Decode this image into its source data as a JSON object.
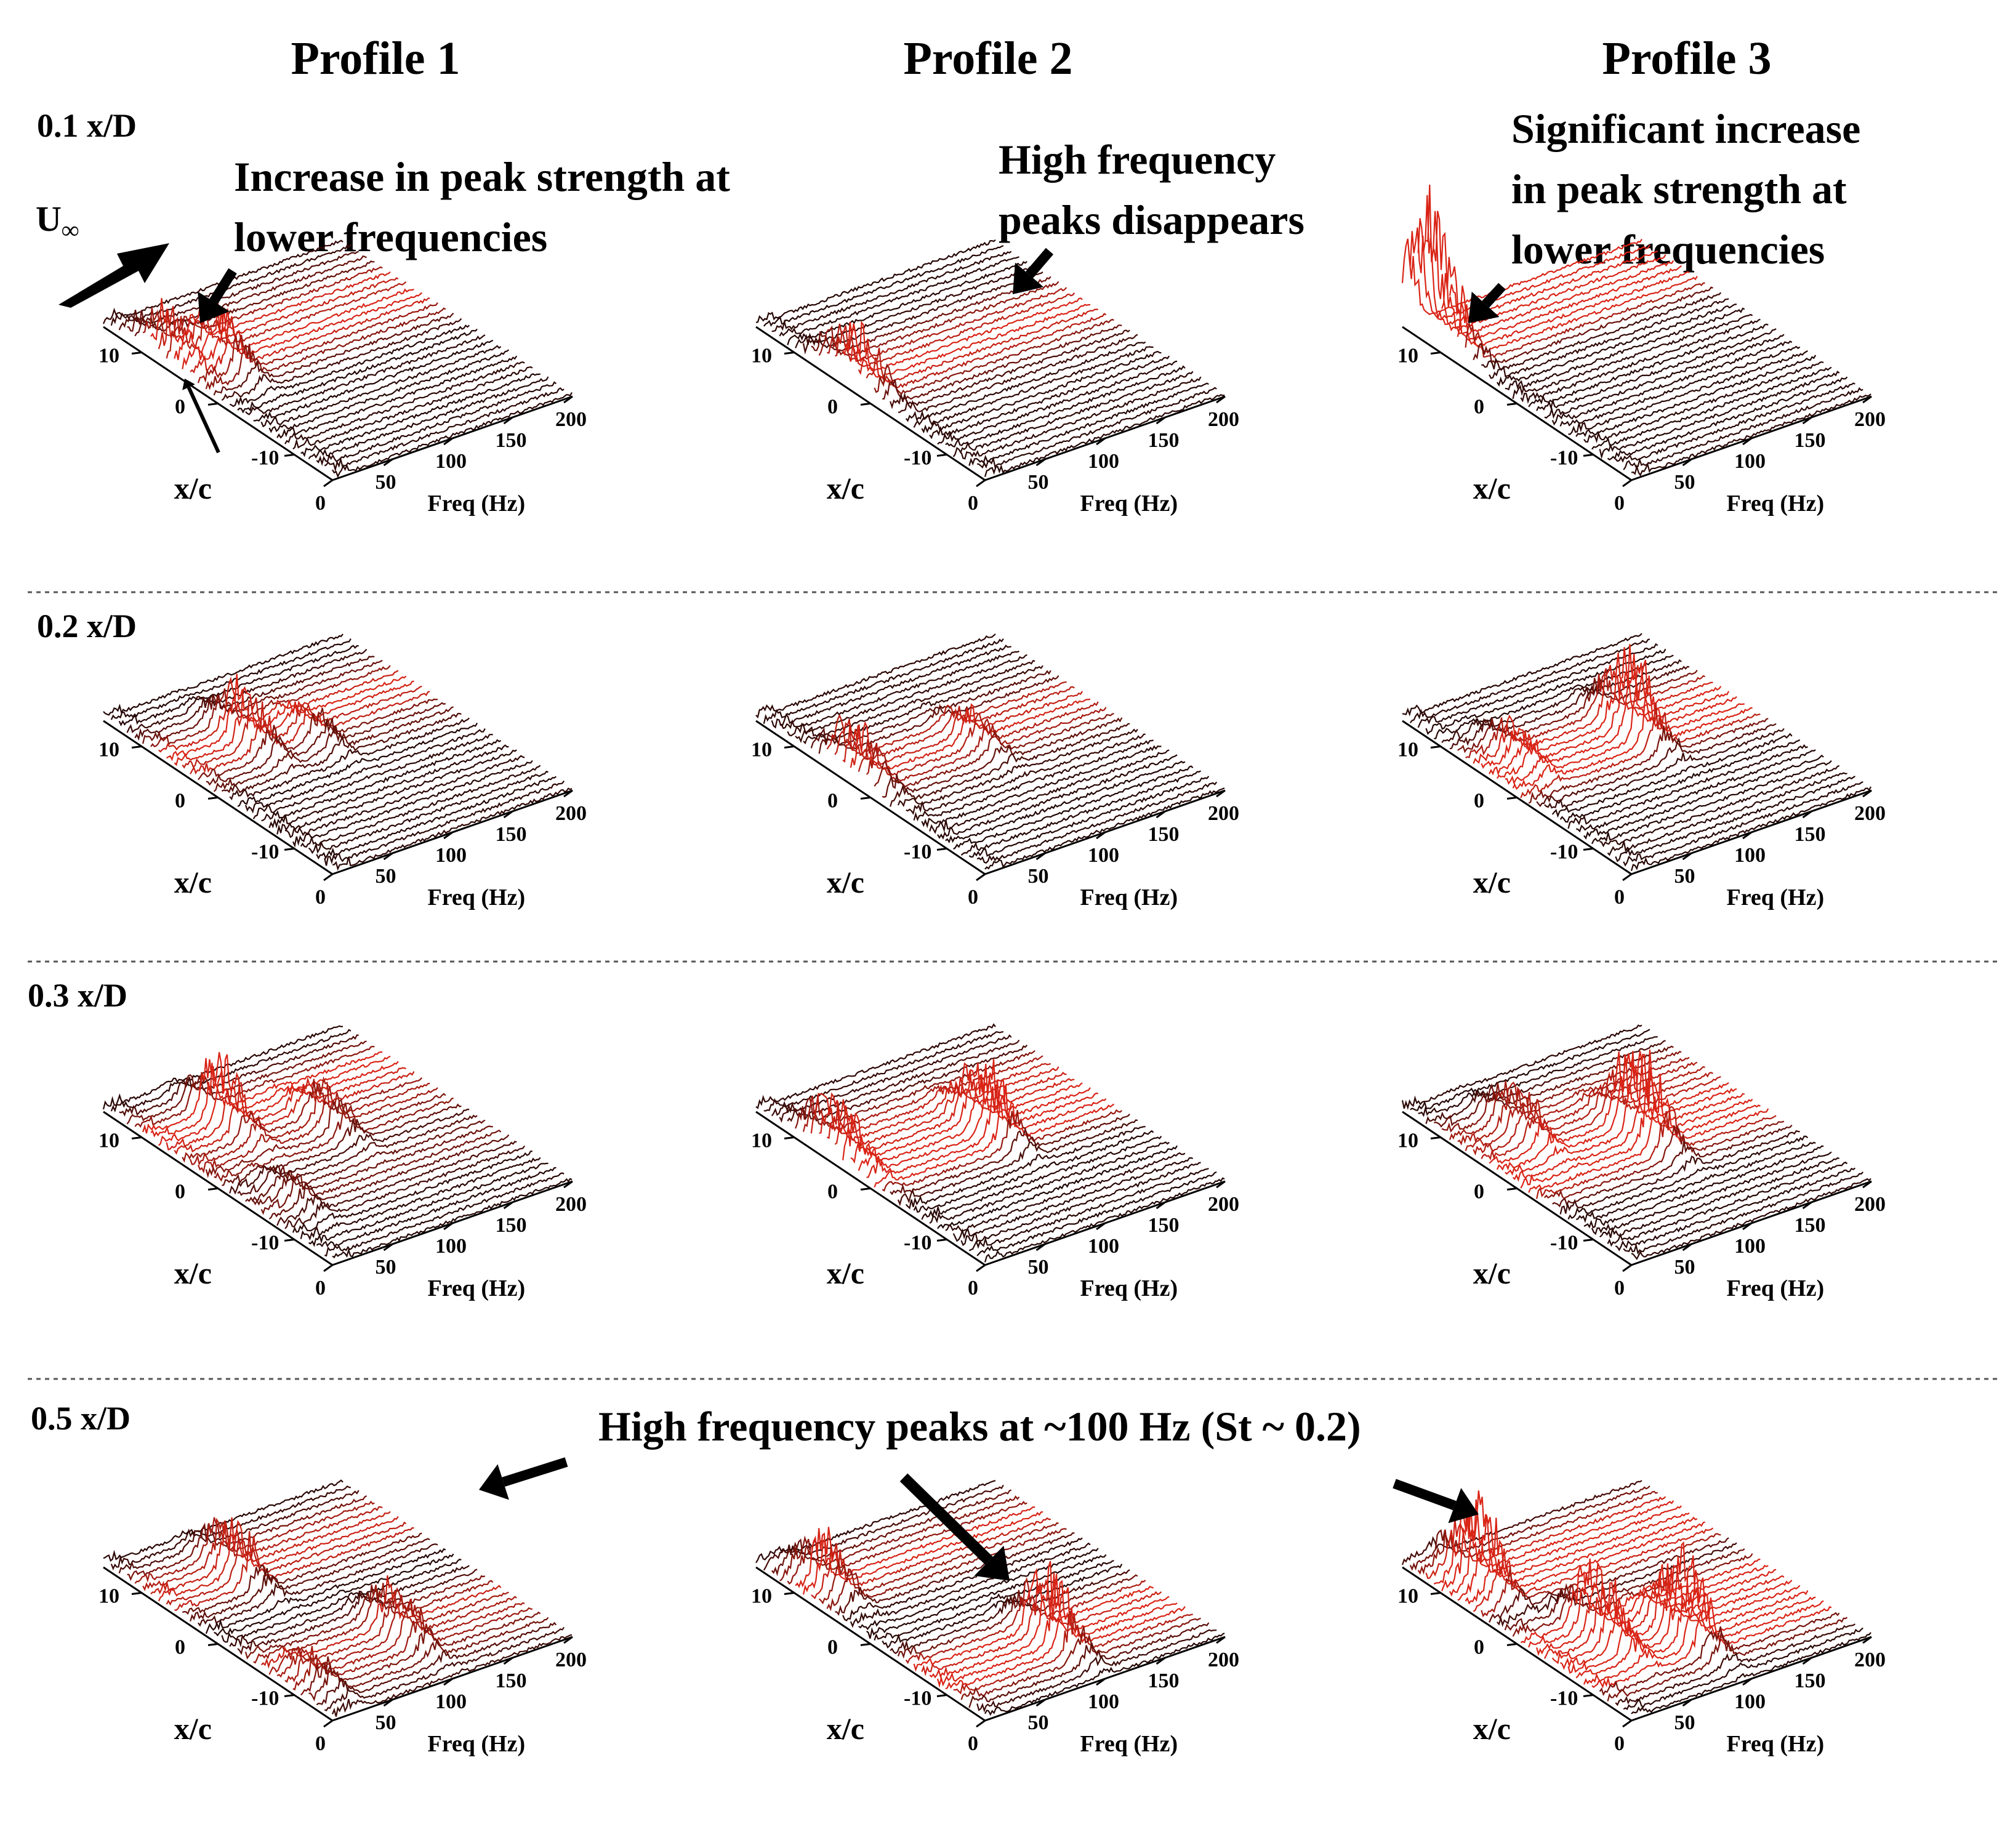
{
  "figure": {
    "columns": [
      "Profile 1",
      "Profile 2",
      "Profile 3"
    ],
    "rows": [
      "0.1 x/D",
      "0.2 x/D",
      "0.3 x/D",
      "0.5 x/D"
    ],
    "freestream_label": "U",
    "freestream_sub": "∞",
    "annotations": {
      "p1_line1": "Increase in peak strength at",
      "p1_line2": "lower frequencies",
      "p2_line1": "High frequency",
      "p2_line2": "peaks disappears",
      "p3_line1": "Significant increase",
      "p3_line2": "in peak strength at",
      "p3_line3": "lower frequencies",
      "bottom": "High frequency peaks at ~100 Hz (St ~ 0.2)"
    },
    "colors": {
      "low": "#000000",
      "high": "#ff2a1a",
      "axis": "#000000",
      "separator": "#555555"
    }
  },
  "chart_data": {
    "type": "waterfall-3d",
    "xlabel": "Freq (Hz)",
    "ylabel": "x/c",
    "freq_ticks": [
      "0",
      "50",
      "100",
      "150",
      "200"
    ],
    "xc_ticks": [
      "10",
      "0",
      "-10"
    ],
    "xlim": [
      0,
      200
    ],
    "ylim": [
      -15,
      15
    ],
    "grid": false,
    "panels": [
      {
        "profile": "Profile 1",
        "station": "0.1 x/D",
        "peaks": [
          {
            "f": 10,
            "xc": 8,
            "a": 0.75
          },
          {
            "f": 35,
            "xc": 5,
            "a": 1.0
          }
        ]
      },
      {
        "profile": "Profile 2",
        "station": "0.1 x/D",
        "peaks": [
          {
            "f": 8,
            "xc": 3,
            "a": 0.9
          }
        ]
      },
      {
        "profile": "Profile 3",
        "station": "0.1 x/D",
        "peaks": [
          {
            "f": 5,
            "xc": 12,
            "a": 2.4
          }
        ]
      },
      {
        "profile": "Profile 1",
        "station": "0.2 x/D",
        "peaks": [
          {
            "f": 60,
            "xc": 6,
            "a": 1.0
          },
          {
            "f": 100,
            "xc": 3,
            "a": 0.55
          }
        ]
      },
      {
        "profile": "Profile 2",
        "station": "0.2 x/D",
        "peaks": [
          {
            "f": 10,
            "xc": 3,
            "a": 0.9
          },
          {
            "f": 100,
            "xc": 2,
            "a": 0.55
          }
        ]
      },
      {
        "profile": "Profile 3",
        "station": "0.2 x/D",
        "peaks": [
          {
            "f": 115,
            "xc": 3,
            "a": 1.5
          },
          {
            "f": 30,
            "xc": 5,
            "a": 0.6
          }
        ]
      },
      {
        "profile": "Profile 1",
        "station": "0.3 x/D",
        "peaks": [
          {
            "f": 55,
            "xc": 8,
            "a": 1.1
          },
          {
            "f": 110,
            "xc": 3,
            "a": 0.7
          },
          {
            "f": 30,
            "xc": -5,
            "a": 0.45
          }
        ]
      },
      {
        "profile": "Profile 2",
        "station": "0.3 x/D",
        "peaks": [
          {
            "f": 10,
            "xc": 6,
            "a": 0.95
          },
          {
            "f": 110,
            "xc": 2,
            "a": 1.2
          }
        ]
      },
      {
        "profile": "Profile 3",
        "station": "0.3 x/D",
        "peaks": [
          {
            "f": 45,
            "xc": 7,
            "a": 0.9
          },
          {
            "f": 110,
            "xc": 1,
            "a": 1.6
          }
        ]
      },
      {
        "profile": "Profile 1",
        "station": "0.5 x/D",
        "peaks": [
          {
            "f": 65,
            "xc": 8,
            "a": 1.0
          },
          {
            "f": 105,
            "xc": -7,
            "a": 0.9
          },
          {
            "f": 20,
            "xc": -10,
            "a": 0.55
          }
        ]
      },
      {
        "profile": "Profile 2",
        "station": "0.5 x/D",
        "peaks": [
          {
            "f": 20,
            "xc": 9,
            "a": 0.95
          },
          {
            "f": 100,
            "xc": -8,
            "a": 1.2
          }
        ]
      },
      {
        "profile": "Profile 3",
        "station": "0.5 x/D",
        "peaks": [
          {
            "f": 25,
            "xc": 9,
            "a": 1.6
          },
          {
            "f": 95,
            "xc": -7,
            "a": 1.5
          },
          {
            "f": 50,
            "xc": -3,
            "a": 1.2
          }
        ]
      }
    ]
  }
}
